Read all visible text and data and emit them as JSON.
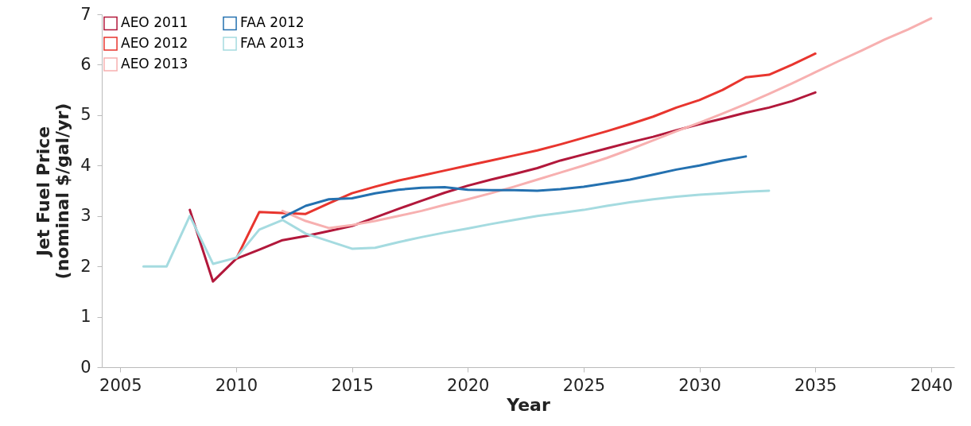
{
  "chart_data": {
    "type": "line",
    "xlabel": "Year",
    "ylabel": "Jet Fuel Price\n(nominal $/gal/yr)",
    "xlim": [
      2004.2,
      2041
    ],
    "xticks": [
      2005,
      2010,
      2015,
      2020,
      2025,
      2030,
      2035,
      2040
    ],
    "ylim": [
      0,
      7
    ],
    "yticks": [
      0,
      1,
      2,
      3,
      4,
      5,
      6,
      7
    ],
    "grid": false,
    "legend": "top left",
    "line_style": "solid",
    "series": [
      {
        "name": "AEO 2011",
        "color": "#b2183b",
        "x": [
          2008,
          2009,
          2010,
          2011,
          2012,
          2013,
          2014,
          2015,
          2016,
          2017,
          2018,
          2019,
          2020,
          2021,
          2022,
          2023,
          2024,
          2025,
          2026,
          2027,
          2028,
          2029,
          2030,
          2031,
          2032,
          2033,
          2034,
          2035
        ],
        "values": [
          3.12,
          1.7,
          2.15,
          2.33,
          2.52,
          2.6,
          2.7,
          2.8,
          2.97,
          3.14,
          3.3,
          3.46,
          3.6,
          3.72,
          3.83,
          3.95,
          4.1,
          4.22,
          4.34,
          4.46,
          4.57,
          4.7,
          4.82,
          4.93,
          5.05,
          5.15,
          5.28,
          5.45
        ]
      },
      {
        "name": "AEO 2012",
        "color": "#e8352e",
        "x": [
          2010,
          2011,
          2012,
          2013,
          2014,
          2015,
          2016,
          2017,
          2018,
          2019,
          2020,
          2021,
          2022,
          2023,
          2024,
          2025,
          2026,
          2027,
          2028,
          2029,
          2030,
          2031,
          2032,
          2033,
          2034,
          2035
        ],
        "values": [
          2.15,
          3.08,
          3.06,
          3.04,
          3.25,
          3.45,
          3.58,
          3.7,
          3.8,
          3.9,
          4.0,
          4.1,
          4.2,
          4.3,
          4.42,
          4.55,
          4.68,
          4.82,
          4.97,
          5.15,
          5.3,
          5.5,
          5.75,
          5.8,
          6.0,
          6.22
        ]
      },
      {
        "name": "AEO 2013",
        "color": "#f7b0b0",
        "x": [
          2012,
          2013,
          2014,
          2015,
          2016,
          2017,
          2018,
          2019,
          2020,
          2021,
          2022,
          2023,
          2024,
          2025,
          2026,
          2027,
          2028,
          2029,
          2030,
          2031,
          2032,
          2033,
          2034,
          2035,
          2036,
          2037,
          2038,
          2039,
          2040
        ],
        "values": [
          3.1,
          2.9,
          2.76,
          2.82,
          2.9,
          3.0,
          3.1,
          3.22,
          3.33,
          3.45,
          3.58,
          3.72,
          3.86,
          4.0,
          4.15,
          4.32,
          4.5,
          4.68,
          4.85,
          5.03,
          5.22,
          5.42,
          5.63,
          5.85,
          6.07,
          6.28,
          6.5,
          6.7,
          6.92
        ]
      },
      {
        "name": "FAA 2012",
        "color": "#2471b0",
        "x": [
          2012,
          2013,
          2014,
          2015,
          2016,
          2017,
          2018,
          2019,
          2020,
          2021,
          2022,
          2023,
          2024,
          2025,
          2026,
          2027,
          2028,
          2029,
          2030,
          2031,
          2032
        ],
        "values": [
          2.97,
          3.2,
          3.33,
          3.35,
          3.45,
          3.52,
          3.56,
          3.57,
          3.52,
          3.51,
          3.51,
          3.5,
          3.53,
          3.58,
          3.65,
          3.72,
          3.82,
          3.92,
          4.0,
          4.1,
          4.18
        ]
      },
      {
        "name": "FAA 2013",
        "color": "#a5dbe0",
        "x": [
          2006,
          2007,
          2008,
          2009,
          2010,
          2011,
          2012,
          2013,
          2014,
          2015,
          2016,
          2017,
          2018,
          2019,
          2020,
          2021,
          2022,
          2023,
          2024,
          2025,
          2026,
          2027,
          2028,
          2029,
          2030,
          2031,
          2032,
          2033
        ],
        "values": [
          2.0,
          2.0,
          3.0,
          2.05,
          2.17,
          2.73,
          2.92,
          2.65,
          2.5,
          2.35,
          2.37,
          2.48,
          2.58,
          2.67,
          2.75,
          2.84,
          2.92,
          3.0,
          3.06,
          3.12,
          3.2,
          3.27,
          3.33,
          3.38,
          3.42,
          3.45,
          3.48,
          3.5
        ]
      }
    ]
  }
}
